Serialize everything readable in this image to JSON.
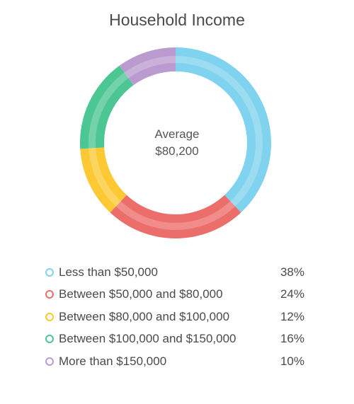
{
  "chart_data": {
    "type": "pie",
    "title": "Household Income",
    "center_label": {
      "line1": "Average",
      "line2": "$80,200"
    },
    "categories": [
      "Less than $50,000",
      "Between $50,000 and $80,000",
      "Between $80,000 and $100,000",
      "Between $100,000 and $150,000",
      "More than $150,000"
    ],
    "values": [
      38,
      24,
      12,
      16,
      10
    ],
    "value_labels": [
      "38%",
      "24%",
      "12%",
      "16%",
      "10%"
    ],
    "colors": [
      "#7fd3ee",
      "#ec6e6a",
      "#fcc934",
      "#4cc693",
      "#bb9bcf"
    ],
    "legend_position": "bottom"
  }
}
